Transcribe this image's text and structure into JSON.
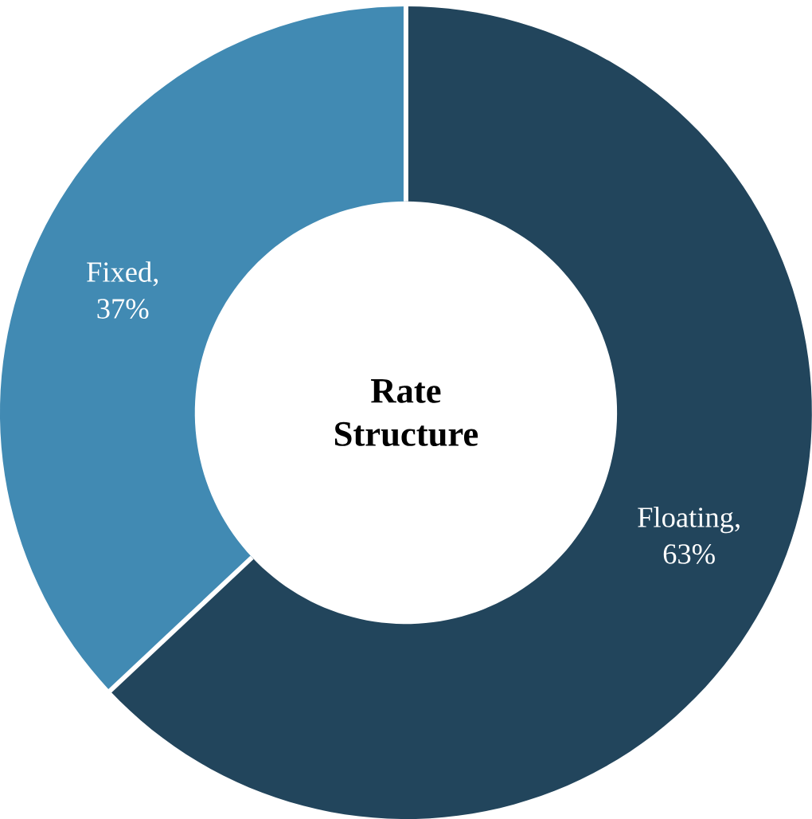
{
  "chart_data": {
    "type": "donut",
    "title": "Rate Structure",
    "categories": [
      null,
      null
    ],
    "values": [
      63,
      37
    ],
    "colors": [
      "#22455c",
      "#418ab3"
    ],
    "value_labels": [
      "Floating, 63%",
      "Fixed, 37%"
    ]
  }
}
